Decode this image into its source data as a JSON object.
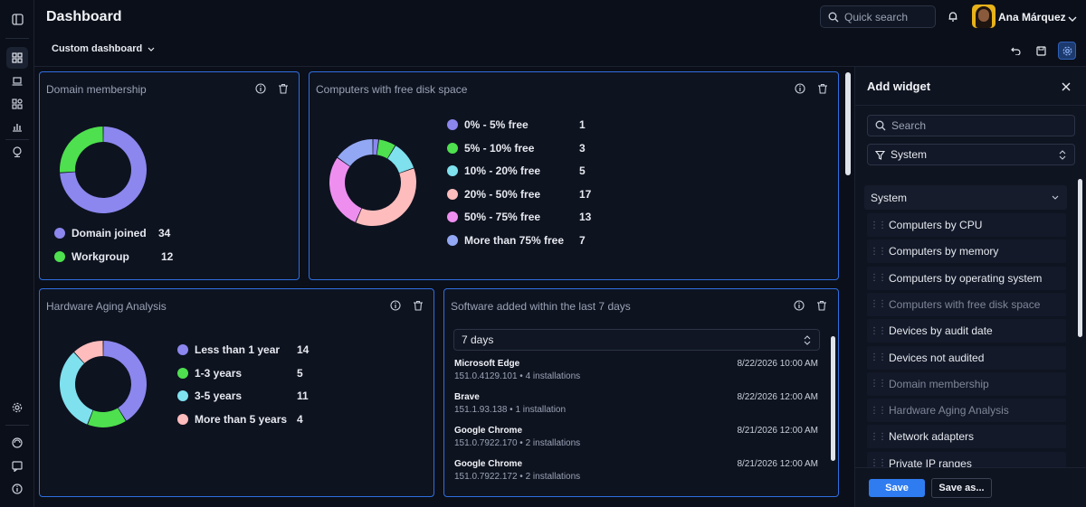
{
  "header": {
    "title": "Dashboard",
    "search_placeholder": "Quick search",
    "user_name": "Ana Márquez",
    "dashboard_selector": "Custom dashboard"
  },
  "domain_membership": {
    "title": "Domain membership",
    "items": [
      {
        "label": "Domain joined",
        "value": "34",
        "color": "#8b87ee"
      },
      {
        "label": "Workgroup",
        "value": "12",
        "color": "#4ee04e"
      }
    ]
  },
  "free_disk": {
    "title": "Computers with free disk space",
    "items": [
      {
        "label": "0% - 5% free",
        "value": "1",
        "color": "#8b87ee"
      },
      {
        "label": "5% - 10% free",
        "value": "3",
        "color": "#4ee04e"
      },
      {
        "label": "10% - 20% free",
        "value": "5",
        "color": "#7fe0ee"
      },
      {
        "label": "20% - 50% free",
        "value": "17",
        "color": "#ffbcbc"
      },
      {
        "label": "50% - 75% free",
        "value": "13",
        "color": "#ee8ff0"
      },
      {
        "label": "More than 75% free",
        "value": "7",
        "color": "#93a8f4"
      }
    ]
  },
  "hardware_aging": {
    "title": "Hardware Aging Analysis",
    "items": [
      {
        "label": "Less than 1 year",
        "value": "14",
        "color": "#8b87ee"
      },
      {
        "label": "1-3 years",
        "value": "5",
        "color": "#4ee04e"
      },
      {
        "label": "3-5 years",
        "value": "11",
        "color": "#7fe0ee"
      },
      {
        "label": "More than 5 years",
        "value": "4",
        "color": "#ffbcbc"
      }
    ]
  },
  "software_added": {
    "title": "Software added within the last 7 days",
    "range": "7 days",
    "items": [
      {
        "name": "Microsoft Edge",
        "detail": "151.0.4129.101 • 4 installations",
        "date": "8/22/2026 10:00 AM"
      },
      {
        "name": "Brave",
        "detail": "151.1.93.138 • 1 installation",
        "date": "8/22/2026 12:00 AM"
      },
      {
        "name": "Google Chrome",
        "detail": "151.0.7922.170 • 2 installations",
        "date": "8/21/2026 12:00 AM"
      },
      {
        "name": "Google Chrome",
        "detail": "151.0.7922.172 • 2 installations",
        "date": "8/21/2026 12:00 AM"
      }
    ]
  },
  "add_widget": {
    "title": "Add widget",
    "search_placeholder": "Search",
    "filter": "System",
    "group": "System",
    "items": [
      {
        "label": "Computers by CPU",
        "added": false
      },
      {
        "label": "Computers by memory",
        "added": false
      },
      {
        "label": "Computers by operating system",
        "added": false
      },
      {
        "label": "Computers with free disk space",
        "added": true
      },
      {
        "label": "Devices by audit date",
        "added": false
      },
      {
        "label": "Devices not audited",
        "added": false
      },
      {
        "label": "Domain membership",
        "added": true
      },
      {
        "label": "Hardware Aging Analysis",
        "added": true
      },
      {
        "label": "Network adapters",
        "added": false
      },
      {
        "label": "Private IP ranges",
        "added": false
      }
    ],
    "save_label": "Save",
    "save_as_label": "Save as..."
  }
}
